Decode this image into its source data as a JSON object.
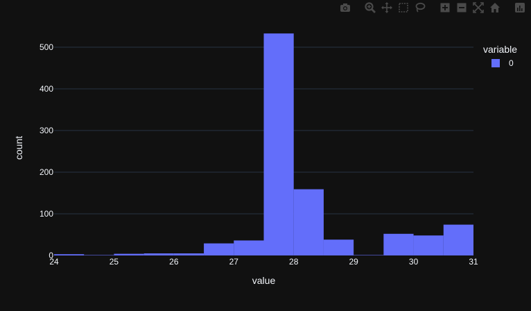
{
  "modebar": {
    "icons": [
      "camera-icon",
      "zoom-icon",
      "pan-icon",
      "box-select-icon",
      "lasso-icon",
      "zoom-in-icon",
      "zoom-out-icon",
      "autoscale-icon",
      "home-icon",
      "plotly-logo-icon"
    ]
  },
  "chart_data": {
    "type": "bar",
    "subtype": "histogram",
    "xlabel": "value",
    "ylabel": "count",
    "xlim": [
      24,
      31
    ],
    "ylim": [
      0,
      550
    ],
    "xticks": [
      24,
      25,
      26,
      27,
      28,
      29,
      30,
      31
    ],
    "xtick_labels": [
      "24",
      "25",
      "26",
      "27",
      "28",
      "29",
      "30",
      "31"
    ],
    "yticks": [
      0,
      100,
      200,
      300,
      400,
      500
    ],
    "ytick_labels": [
      "0",
      "100",
      "200",
      "300",
      "400",
      "500"
    ],
    "grid": true,
    "legend": {
      "title": "variable",
      "placement": "top-right",
      "entries": [
        "0"
      ]
    },
    "series": [
      {
        "name": "0",
        "color": "#636efa",
        "bins": [
          {
            "x0": 24.0,
            "x1": 24.5,
            "count": 3
          },
          {
            "x0": 24.5,
            "x1": 25.0,
            "count": 1
          },
          {
            "x0": 25.0,
            "x1": 25.5,
            "count": 4
          },
          {
            "x0": 25.5,
            "x1": 26.0,
            "count": 5
          },
          {
            "x0": 26.0,
            "x1": 26.5,
            "count": 5
          },
          {
            "x0": 26.5,
            "x1": 27.0,
            "count": 29
          },
          {
            "x0": 27.0,
            "x1": 27.5,
            "count": 36
          },
          {
            "x0": 27.5,
            "x1": 28.0,
            "count": 533
          },
          {
            "x0": 28.0,
            "x1": 28.5,
            "count": 159
          },
          {
            "x0": 28.5,
            "x1": 29.0,
            "count": 38
          },
          {
            "x0": 29.0,
            "x1": 29.5,
            "count": 1
          },
          {
            "x0": 29.5,
            "x1": 30.0,
            "count": 52
          },
          {
            "x0": 30.0,
            "x1": 30.5,
            "count": 48
          },
          {
            "x0": 30.5,
            "x1": 31.0,
            "count": 74
          }
        ]
      }
    ]
  },
  "colors": {
    "background": "#111111",
    "grid": "#283442",
    "bar": "#636efa",
    "text": "#f2f5fa",
    "modebar_icon": "#4a4a4a"
  }
}
